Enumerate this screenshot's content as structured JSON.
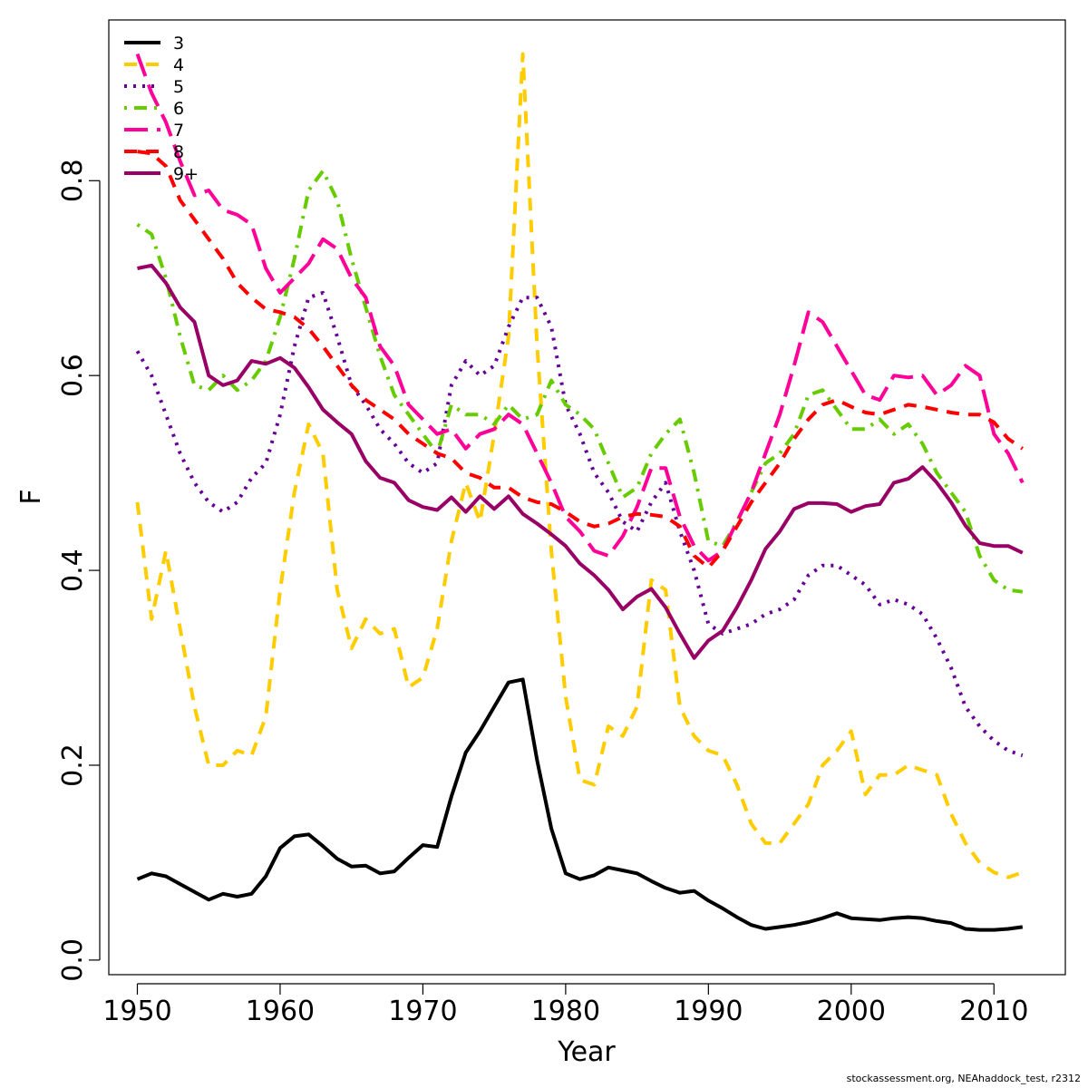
{
  "chart_data": {
    "type": "line",
    "title": "",
    "xlabel": "Year",
    "ylabel": "F",
    "xlim": [
      1948,
      2015
    ],
    "ylim": [
      -0.015,
      0.965
    ],
    "xticks": [
      1950,
      1960,
      1970,
      1980,
      1990,
      2000,
      2010
    ],
    "yticks": [
      0.0,
      0.2,
      0.4,
      0.6,
      0.8
    ],
    "ytick_labels": [
      "0.0",
      "0.2",
      "0.4",
      "0.6",
      "0.8"
    ],
    "grid": false,
    "legend_position": "top-left",
    "x": [
      1950,
      1951,
      1952,
      1953,
      1954,
      1955,
      1956,
      1957,
      1958,
      1959,
      1960,
      1961,
      1962,
      1963,
      1964,
      1965,
      1966,
      1967,
      1968,
      1969,
      1970,
      1971,
      1972,
      1973,
      1974,
      1975,
      1976,
      1977,
      1978,
      1979,
      1980,
      1981,
      1982,
      1983,
      1984,
      1985,
      1986,
      1987,
      1988,
      1989,
      1990,
      1991,
      1992,
      1993,
      1994,
      1995,
      1996,
      1997,
      1998,
      1999,
      2000,
      2001,
      2002,
      2003,
      2004,
      2005,
      2006,
      2007,
      2008,
      2009,
      2010,
      2011,
      2012
    ],
    "series": [
      {
        "name": "3",
        "color": "#000000",
        "dash": "solid",
        "values": [
          0.083,
          0.089,
          0.086,
          0.078,
          0.07,
          0.062,
          0.068,
          0.065,
          0.068,
          0.086,
          0.115,
          0.127,
          0.129,
          0.117,
          0.104,
          0.096,
          0.097,
          0.089,
          0.091,
          0.105,
          0.118,
          0.116,
          0.168,
          0.213,
          0.235,
          0.26,
          0.285,
          0.288,
          0.205,
          0.135,
          0.089,
          0.083,
          0.087,
          0.095,
          0.092,
          0.089,
          0.081,
          0.074,
          0.069,
          0.071,
          0.061,
          0.053,
          0.044,
          0.036,
          0.032,
          0.034,
          0.036,
          0.039,
          0.043,
          0.048,
          0.043,
          0.042,
          0.041,
          0.043,
          0.044,
          0.043,
          0.04,
          0.038,
          0.032,
          0.031,
          0.031,
          0.032,
          0.034
        ]
      },
      {
        "name": "4",
        "color": "#ffcc00",
        "dash": "dashed",
        "values": [
          0.47,
          0.35,
          0.42,
          0.34,
          0.26,
          0.2,
          0.2,
          0.215,
          0.21,
          0.25,
          0.38,
          0.48,
          0.55,
          0.52,
          0.38,
          0.32,
          0.35,
          0.335,
          0.34,
          0.28,
          0.29,
          0.34,
          0.43,
          0.49,
          0.45,
          0.54,
          0.64,
          0.93,
          0.63,
          0.42,
          0.27,
          0.185,
          0.18,
          0.24,
          0.23,
          0.26,
          0.39,
          0.38,
          0.26,
          0.23,
          0.215,
          0.21,
          0.18,
          0.14,
          0.12,
          0.12,
          0.14,
          0.16,
          0.2,
          0.215,
          0.235,
          0.17,
          0.19,
          0.19,
          0.2,
          0.195,
          0.19,
          0.15,
          0.12,
          0.1,
          0.09,
          0.085,
          0.09
        ]
      },
      {
        "name": "5",
        "color": "#660099",
        "dash": "dotted",
        "values": [
          0.625,
          0.6,
          0.56,
          0.52,
          0.49,
          0.47,
          0.46,
          0.47,
          0.495,
          0.51,
          0.56,
          0.63,
          0.68,
          0.685,
          0.64,
          0.59,
          0.57,
          0.545,
          0.53,
          0.51,
          0.5,
          0.51,
          0.59,
          0.615,
          0.6,
          0.61,
          0.65,
          0.68,
          0.68,
          0.65,
          0.57,
          0.54,
          0.5,
          0.48,
          0.45,
          0.44,
          0.47,
          0.49,
          0.44,
          0.4,
          0.345,
          0.335,
          0.34,
          0.345,
          0.355,
          0.36,
          0.37,
          0.395,
          0.405,
          0.405,
          0.395,
          0.385,
          0.365,
          0.37,
          0.365,
          0.355,
          0.33,
          0.3,
          0.26,
          0.24,
          0.225,
          0.215,
          0.21
        ]
      },
      {
        "name": "6",
        "color": "#66cc00",
        "dash": "dotdash",
        "values": [
          0.755,
          0.745,
          0.7,
          0.64,
          0.59,
          0.585,
          0.6,
          0.585,
          0.595,
          0.615,
          0.66,
          0.72,
          0.79,
          0.81,
          0.78,
          0.72,
          0.67,
          0.62,
          0.58,
          0.56,
          0.54,
          0.52,
          0.57,
          0.56,
          0.56,
          0.55,
          0.57,
          0.555,
          0.56,
          0.595,
          0.57,
          0.56,
          0.545,
          0.51,
          0.475,
          0.485,
          0.52,
          0.54,
          0.555,
          0.5,
          0.43,
          0.425,
          0.45,
          0.48,
          0.51,
          0.52,
          0.54,
          0.58,
          0.585,
          0.565,
          0.545,
          0.545,
          0.555,
          0.54,
          0.55,
          0.53,
          0.5,
          0.48,
          0.46,
          0.415,
          0.39,
          0.38,
          0.378
        ]
      },
      {
        "name": "7",
        "color": "#ff0099",
        "dash": "longdash",
        "values": [
          0.93,
          0.89,
          0.86,
          0.82,
          0.785,
          0.79,
          0.77,
          0.765,
          0.755,
          0.71,
          0.685,
          0.7,
          0.715,
          0.74,
          0.73,
          0.7,
          0.68,
          0.63,
          0.61,
          0.57,
          0.555,
          0.54,
          0.545,
          0.525,
          0.54,
          0.545,
          0.56,
          0.55,
          0.52,
          0.49,
          0.455,
          0.44,
          0.42,
          0.415,
          0.435,
          0.465,
          0.505,
          0.505,
          0.455,
          0.425,
          0.41,
          0.42,
          0.45,
          0.48,
          0.52,
          0.56,
          0.61,
          0.665,
          0.655,
          0.63,
          0.605,
          0.58,
          0.575,
          0.6,
          0.598,
          0.6,
          0.58,
          0.59,
          0.61,
          0.6,
          0.54,
          0.52,
          0.49
        ]
      },
      {
        "name": "8",
        "color": "#ff0000",
        "dash": "dashed",
        "values": [
          0.83,
          0.828,
          0.815,
          0.78,
          0.76,
          0.74,
          0.72,
          0.695,
          0.68,
          0.668,
          0.665,
          0.66,
          0.648,
          0.63,
          0.61,
          0.59,
          0.575,
          0.565,
          0.555,
          0.54,
          0.53,
          0.52,
          0.515,
          0.5,
          0.495,
          0.485,
          0.485,
          0.475,
          0.47,
          0.468,
          0.46,
          0.45,
          0.445,
          0.448,
          0.455,
          0.458,
          0.457,
          0.455,
          0.445,
          0.415,
          0.403,
          0.42,
          0.445,
          0.47,
          0.49,
          0.51,
          0.535,
          0.555,
          0.57,
          0.575,
          0.568,
          0.562,
          0.56,
          0.565,
          0.57,
          0.568,
          0.565,
          0.562,
          0.56,
          0.56,
          0.552,
          0.535,
          0.525
        ]
      },
      {
        "name": "9+",
        "color": "#990066",
        "dash": "solid",
        "values": [
          0.71,
          0.713,
          0.695,
          0.67,
          0.655,
          0.6,
          0.59,
          0.595,
          0.615,
          0.612,
          0.618,
          0.608,
          0.588,
          0.565,
          0.552,
          0.54,
          0.512,
          0.495,
          0.49,
          0.472,
          0.465,
          0.462,
          0.475,
          0.46,
          0.476,
          0.463,
          0.476,
          0.458,
          0.448,
          0.437,
          0.425,
          0.407,
          0.395,
          0.38,
          0.36,
          0.373,
          0.381,
          0.362,
          0.335,
          0.31,
          0.328,
          0.338,
          0.362,
          0.39,
          0.422,
          0.44,
          0.463,
          0.469,
          0.469,
          0.468,
          0.46,
          0.466,
          0.468,
          0.49,
          0.494,
          0.506,
          0.49,
          0.47,
          0.446,
          0.428,
          0.425,
          0.425,
          0.418
        ]
      }
    ]
  },
  "footer": {
    "credit": "stockassessment.org, NEAhaddock_test, r2312"
  }
}
